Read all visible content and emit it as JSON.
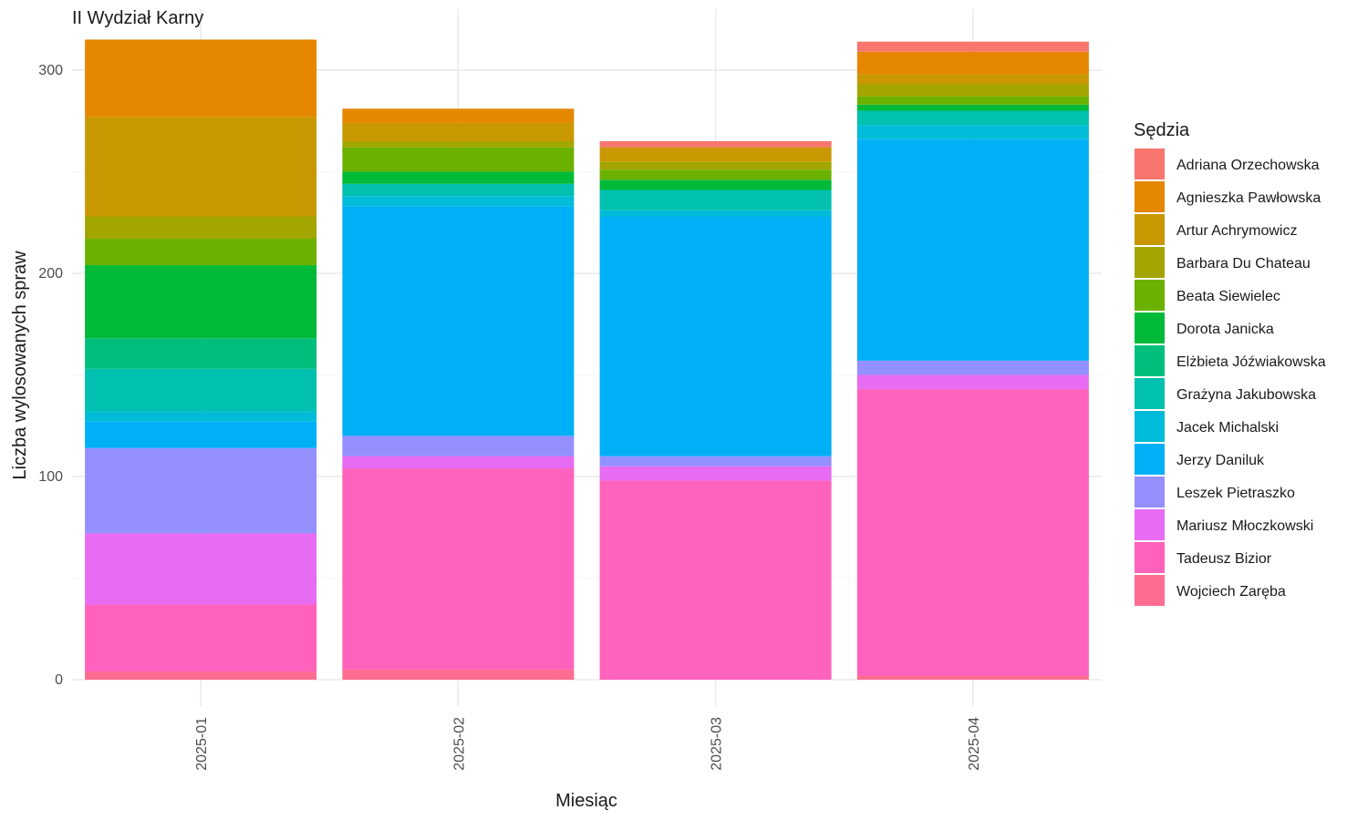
{
  "chart_data": {
    "type": "bar",
    "stacked": true,
    "title": "II Wydział Karny",
    "xlabel": "Miesiąc",
    "ylabel": "Liczba wylosowanych spraw",
    "categories": [
      "2025-01",
      "2025-02",
      "2025-03",
      "2025-04"
    ],
    "y_ticks": [
      0,
      100,
      200,
      300
    ],
    "ylim": [
      -13,
      330
    ],
    "grid": true,
    "legend": {
      "title": "Sędzia",
      "position": "right"
    },
    "series": [
      {
        "name": "Adriana Orzechowska",
        "color": "#F8766D",
        "values": [
          0,
          0,
          3,
          5
        ]
      },
      {
        "name": "Agnieszka Pawłowska",
        "color": "#E58700",
        "values": [
          38,
          7,
          0,
          11
        ]
      },
      {
        "name": "Artur Achrymowicz",
        "color": "#C99800",
        "values": [
          49,
          9,
          7,
          5
        ]
      },
      {
        "name": "Barbara Du Chateau",
        "color": "#A3A500",
        "values": [
          11,
          3,
          4,
          6
        ]
      },
      {
        "name": "Beata Siewielec",
        "color": "#6BB100",
        "values": [
          13,
          12,
          5,
          4
        ]
      },
      {
        "name": "Dorota Janicka",
        "color": "#00BA38",
        "values": [
          36,
          6,
          5,
          3
        ]
      },
      {
        "name": "Elżbieta Jóźwiakowska",
        "color": "#00BF7D",
        "values": [
          15,
          0,
          0,
          0
        ]
      },
      {
        "name": "Grażyna Jakubowska",
        "color": "#00C0AF",
        "values": [
          21,
          6,
          10,
          7
        ]
      },
      {
        "name": "Jacek Michalski",
        "color": "#00BCD8",
        "values": [
          5,
          5,
          3,
          7
        ]
      },
      {
        "name": "Jerzy Daniluk",
        "color": "#00B0F6",
        "values": [
          13,
          113,
          118,
          109
        ]
      },
      {
        "name": "Leszek Pietraszko",
        "color": "#9590FF",
        "values": [
          42,
          10,
          5,
          7
        ]
      },
      {
        "name": "Mariusz Młoczkowski",
        "color": "#E76BF3",
        "values": [
          35,
          6,
          7,
          7
        ]
      },
      {
        "name": "Tadeusz Bizior",
        "color": "#FF62BC",
        "values": [
          33,
          99,
          98,
          141
        ]
      },
      {
        "name": "Wojciech Zaręba",
        "color": "#FF6C91",
        "values": [
          4,
          5,
          0,
          2
        ]
      }
    ]
  }
}
